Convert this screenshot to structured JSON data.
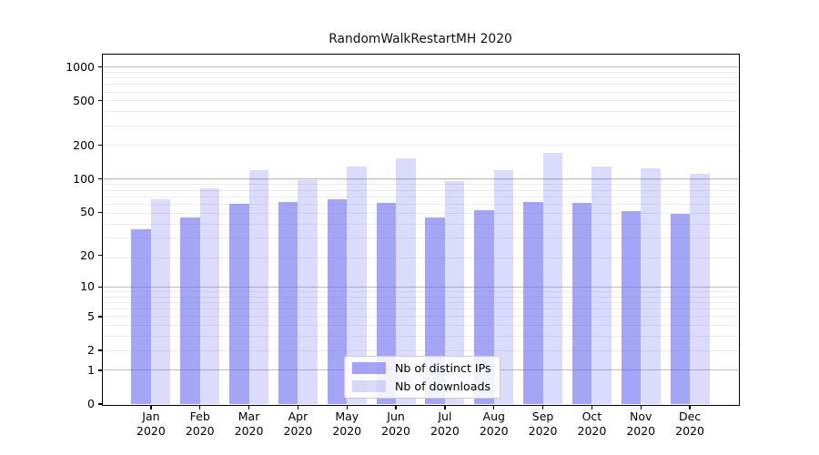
{
  "figure": {
    "background": "#ffffff",
    "text_color": "#000000"
  },
  "chart_data": {
    "type": "bar",
    "title": "RandomWalkRestartMH 2020",
    "categories": [
      "Jan 2020",
      "Feb 2020",
      "Mar 2020",
      "Apr 2020",
      "May 2020",
      "Jun 2020",
      "Jul 2020",
      "Aug 2020",
      "Sep 2020",
      "Oct 2020",
      "Nov 2020",
      "Dec 2020"
    ],
    "series": [
      {
        "name": "Nb of distinct IPs",
        "color": "#6464ee",
        "alpha": 0.58,
        "solid_color": "#a5a5f0",
        "values": [
          35,
          45,
          60,
          62,
          65,
          61,
          45,
          52,
          62,
          61,
          51,
          48
        ]
      },
      {
        "name": "Nb of downloads",
        "color": "#6464ee",
        "alpha": 0.23,
        "solid_color": "#dbdbf9",
        "values": [
          66,
          82,
          120,
          97,
          130,
          153,
          96,
          120,
          172,
          128,
          124,
          112
        ]
      }
    ],
    "yscale": "log1p",
    "ylim": [
      0,
      1290
    ],
    "y_ticks": [
      0,
      1,
      2,
      5,
      10,
      20,
      50,
      100,
      200,
      500,
      1000
    ],
    "y_major_gridlines": [
      1,
      10,
      100,
      1000
    ],
    "y_minor_gridlines": [
      2,
      3,
      4,
      5,
      6,
      7,
      8,
      9,
      19,
      29,
      39,
      49,
      59,
      69,
      79,
      89,
      99,
      199,
      299,
      399,
      499,
      599,
      699,
      799,
      899,
      999
    ],
    "grid": true,
    "bar_group_width": 0.8,
    "legend_position": "lower center",
    "colors": {
      "major_grid": "#bcbcbc",
      "minor_grid": "#ececec",
      "spine": "#000000"
    }
  }
}
